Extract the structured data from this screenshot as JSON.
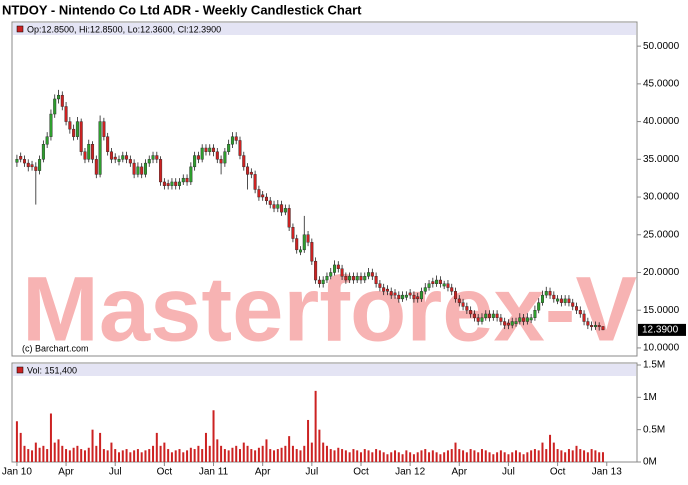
{
  "chart_data": {
    "type": "candlestick",
    "title": "NTDOY - Nintendo Co Ltd ADR - Weekly Candlestick Chart",
    "legend": "Op:12.8500, Hi:12.8500, Lo:12.3600, Cl:12.3900",
    "volume_legend": "Vol: 151,400",
    "source": "(c) Barchart.com",
    "watermark": "Masterforex-V",
    "up_color": "#2e9e2e",
    "down_color": "#cc2222",
    "volume_color": "#cc2222",
    "grid": false,
    "xlim": [
      -1.3,
      164
    ],
    "xticks": [
      {
        "value": 0,
        "label": "Jan 10"
      },
      {
        "value": 13,
        "label": "Apr"
      },
      {
        "value": 26,
        "label": "Jul"
      },
      {
        "value": 39,
        "label": "Oct"
      },
      {
        "value": 52,
        "label": "Jan 11"
      },
      {
        "value": 65,
        "label": "Apr"
      },
      {
        "value": 78,
        "label": "Jul"
      },
      {
        "value": 91,
        "label": "Oct"
      },
      {
        "value": 104,
        "label": "Jan 12"
      },
      {
        "value": 117,
        "label": "Apr"
      },
      {
        "value": 130,
        "label": "Jul"
      },
      {
        "value": 143,
        "label": "Oct"
      },
      {
        "value": 156,
        "label": "Jan 13"
      }
    ],
    "ylim": [
      8.93,
      53.2
    ],
    "yticks": [
      {
        "value": 10,
        "label": "10.0000"
      },
      {
        "value": 15,
        "label": "15.0000"
      },
      {
        "value": 20,
        "label": "20.0000"
      },
      {
        "value": 25,
        "label": "25.0000"
      },
      {
        "value": 30,
        "label": "30.0000"
      },
      {
        "value": 35,
        "label": "35.0000"
      },
      {
        "value": 40,
        "label": "40.0000"
      },
      {
        "value": 45,
        "label": "45.0000"
      },
      {
        "value": 50,
        "label": "50.0000"
      }
    ],
    "last_price": {
      "value": 12.39,
      "label": "12.3900"
    },
    "volume_ylim": [
      0,
      1500000
    ],
    "volume_ticks": [
      {
        "value": 0,
        "label": "0M"
      },
      {
        "value": 500000,
        "label": "0.5M"
      },
      {
        "value": 1000000,
        "label": "1M"
      },
      {
        "value": 1500000,
        "label": "1.5M"
      }
    ],
    "ohlc": [
      [
        34.6,
        35.6,
        34,
        35
      ],
      [
        35.4,
        35.9,
        34.6,
        35
      ],
      [
        35,
        35.5,
        34,
        34.5
      ],
      [
        34.5,
        35,
        33.4,
        34
      ],
      [
        34.3,
        34.8,
        33.5,
        34
      ],
      [
        34,
        34.6,
        29,
        33.5
      ],
      [
        33.5,
        35.5,
        33,
        35
      ],
      [
        35,
        37.5,
        34.6,
        37
      ],
      [
        37,
        38.6,
        36.5,
        38
      ],
      [
        38,
        41.6,
        37.5,
        41
      ],
      [
        41,
        43.6,
        40.5,
        43
      ],
      [
        43,
        44.2,
        42.4,
        43.5
      ],
      [
        43.5,
        44,
        41.5,
        42
      ],
      [
        42,
        42.6,
        39.5,
        40
      ],
      [
        40,
        40.6,
        38.4,
        39
      ],
      [
        39,
        39.6,
        37.5,
        38
      ],
      [
        38,
        40.6,
        37.6,
        40
      ],
      [
        40,
        40.4,
        35.5,
        36
      ],
      [
        36,
        36.5,
        34.5,
        35
      ],
      [
        35,
        37.6,
        34.6,
        37
      ],
      [
        37,
        37.4,
        34.5,
        35
      ],
      [
        35,
        35.5,
        32.5,
        33
      ],
      [
        33,
        40.8,
        32.6,
        40
      ],
      [
        40,
        40.5,
        37.5,
        38
      ],
      [
        38,
        38.5,
        35.5,
        36
      ],
      [
        36,
        36.5,
        34.5,
        35
      ],
      [
        35.3,
        35.8,
        34.5,
        35
      ],
      [
        34.7,
        35.5,
        34.2,
        35
      ],
      [
        35,
        36,
        34.6,
        35.5
      ],
      [
        35.5,
        36,
        34.5,
        35
      ],
      [
        35,
        35.5,
        34,
        34.5
      ],
      [
        34.5,
        35,
        32.5,
        33
      ],
      [
        33,
        34.6,
        32.6,
        34
      ],
      [
        34,
        34.5,
        32.5,
        33
      ],
      [
        33,
        35,
        32.6,
        34.5
      ],
      [
        34.5,
        35.5,
        34,
        35
      ],
      [
        35,
        36,
        34.5,
        35.5
      ],
      [
        35.5,
        36,
        34.5,
        35
      ],
      [
        35,
        35.4,
        31.5,
        32
      ],
      [
        32,
        32.5,
        31,
        31.5
      ],
      [
        31.8,
        32.3,
        31,
        31.5
      ],
      [
        31.5,
        32.5,
        31,
        32
      ],
      [
        32,
        32.5,
        31,
        31.5
      ],
      [
        31.5,
        32.5,
        31,
        32
      ],
      [
        32,
        33,
        31.6,
        32.5
      ],
      [
        32.5,
        33,
        31.5,
        32
      ],
      [
        32,
        34.6,
        31.6,
        34
      ],
      [
        34,
        36,
        33.5,
        35.5
      ],
      [
        35.5,
        36,
        34.5,
        35
      ],
      [
        35,
        37,
        34.6,
        36.5
      ],
      [
        36.5,
        37,
        35.5,
        36
      ],
      [
        36,
        37,
        35.5,
        36.5
      ],
      [
        36.5,
        37,
        35.4,
        36
      ],
      [
        36,
        36.5,
        34.5,
        35
      ],
      [
        35,
        35.5,
        33,
        34.5
      ],
      [
        34.5,
        36.5,
        34,
        36
      ],
      [
        36,
        37.6,
        35.6,
        37
      ],
      [
        37,
        38.6,
        36.5,
        38
      ],
      [
        38,
        38.6,
        37,
        37.5
      ],
      [
        37.5,
        38,
        35,
        35.5
      ],
      [
        35.5,
        36,
        33.5,
        34
      ],
      [
        34,
        34.5,
        31,
        33
      ],
      [
        33.3,
        33.8,
        32.5,
        33
      ],
      [
        33,
        33.5,
        30.5,
        31
      ],
      [
        31,
        31.5,
        29.5,
        30
      ],
      [
        30.3,
        30.8,
        29.5,
        30
      ],
      [
        30,
        30.5,
        29,
        29.5
      ],
      [
        29.5,
        30,
        28.5,
        29
      ],
      [
        29,
        29.5,
        28,
        28.5
      ],
      [
        28.5,
        29.6,
        28,
        29
      ],
      [
        29,
        29.5,
        27.5,
        28
      ],
      [
        28,
        29,
        27.6,
        28.5
      ],
      [
        28.5,
        29,
        25.5,
        26
      ],
      [
        26,
        26.5,
        24,
        24.5
      ],
      [
        24.5,
        25,
        22.5,
        23
      ],
      [
        22.7,
        23.5,
        22.3,
        23
      ],
      [
        23,
        27.5,
        22.6,
        25
      ],
      [
        25,
        25.5,
        23.5,
        24
      ],
      [
        24,
        24.5,
        21,
        21.5
      ],
      [
        21.5,
        22,
        18.5,
        19
      ],
      [
        19,
        19.5,
        18,
        18.5
      ],
      [
        18.5,
        19.5,
        18,
        19
      ],
      [
        19,
        20,
        18.6,
        19.5
      ],
      [
        19.5,
        20.6,
        19.1,
        20
      ],
      [
        20,
        21.6,
        19.6,
        21
      ],
      [
        21,
        21.5,
        20,
        20.5
      ],
      [
        20.5,
        21,
        19,
        19.5
      ],
      [
        19.5,
        20,
        18.5,
        19
      ],
      [
        19,
        20,
        18.6,
        19.5
      ],
      [
        19.5,
        20,
        18.5,
        19
      ],
      [
        19,
        20,
        18.6,
        19.5
      ],
      [
        19.5,
        20,
        18.5,
        19
      ],
      [
        19,
        20,
        18.6,
        19.5
      ],
      [
        19.5,
        20.6,
        19.1,
        20
      ],
      [
        20,
        20.5,
        19,
        19.5
      ],
      [
        19.5,
        20,
        18,
        18.5
      ],
      [
        18.5,
        19,
        17.5,
        18
      ],
      [
        18,
        18.5,
        17,
        17.5
      ],
      [
        17.8,
        18.3,
        17,
        17.5
      ],
      [
        17.5,
        18,
        16.5,
        17
      ],
      [
        17.3,
        17.8,
        16.5,
        17
      ],
      [
        17,
        17.5,
        16,
        16.5
      ],
      [
        16.5,
        17.5,
        16.1,
        17
      ],
      [
        16.7,
        17.5,
        16.3,
        17
      ],
      [
        17.3,
        17.8,
        16.5,
        17
      ],
      [
        17,
        17.5,
        16,
        16.5
      ],
      [
        16.8,
        17.3,
        16,
        16.5
      ],
      [
        16.5,
        18,
        16.1,
        17.5
      ],
      [
        17.5,
        18.6,
        17.1,
        18
      ],
      [
        18,
        19,
        17.6,
        18.5
      ],
      [
        18.8,
        19.3,
        18,
        18.5
      ],
      [
        18.5,
        19.6,
        18.1,
        19
      ],
      [
        19,
        19.5,
        18,
        18.5
      ],
      [
        18.2,
        18.9,
        17.8,
        18.5
      ],
      [
        18.5,
        19,
        17.5,
        18
      ],
      [
        18,
        18.5,
        17,
        17.5
      ],
      [
        17.5,
        18,
        16,
        16.5
      ],
      [
        16.5,
        17,
        15.5,
        16
      ],
      [
        16,
        16.5,
        15,
        15.5
      ],
      [
        15.5,
        16,
        14.5,
        15
      ],
      [
        15,
        15.5,
        14,
        14.5
      ],
      [
        14.5,
        15,
        13.5,
        14
      ],
      [
        14,
        14.5,
        13,
        13.5
      ],
      [
        13.5,
        14.6,
        13.1,
        14
      ],
      [
        14,
        15,
        13.6,
        14.5
      ],
      [
        14.5,
        15,
        13.5,
        14
      ],
      [
        14,
        15,
        13.6,
        14.5
      ],
      [
        14.5,
        15,
        13.5,
        14
      ],
      [
        14,
        14.5,
        13,
        13.5
      ],
      [
        13.5,
        14,
        12.5,
        13
      ],
      [
        13.3,
        13.8,
        12.5,
        13
      ],
      [
        13,
        14,
        12.6,
        13.5
      ],
      [
        13.2,
        14,
        12.8,
        13.5
      ],
      [
        13.5,
        14.6,
        13.1,
        14
      ],
      [
        14,
        14.5,
        13,
        13.5
      ],
      [
        13.5,
        14.6,
        13.1,
        14
      ],
      [
        13.7,
        14.5,
        13.3,
        14
      ],
      [
        14,
        15.6,
        13.6,
        15
      ],
      [
        15,
        16.6,
        14.6,
        16
      ],
      [
        16,
        17.6,
        15.6,
        17
      ],
      [
        17,
        18.1,
        16.6,
        17.5
      ],
      [
        17.5,
        18,
        16.5,
        17
      ],
      [
        17,
        17.5,
        16,
        16.5
      ],
      [
        16.2,
        17,
        15.8,
        16.5
      ],
      [
        16.5,
        17,
        15.5,
        16
      ],
      [
        16,
        17,
        15.6,
        16.5
      ],
      [
        16.5,
        17,
        15.5,
        16
      ],
      [
        16,
        16.5,
        15,
        15.5
      ],
      [
        15.5,
        16,
        14.5,
        15
      ],
      [
        15,
        15.5,
        14,
        14.5
      ],
      [
        14.5,
        15,
        13,
        13.5
      ],
      [
        13.5,
        14,
        12.5,
        13
      ],
      [
        13,
        13.5,
        12.3,
        12.8
      ],
      [
        12.8,
        13.5,
        12.4,
        13
      ],
      [
        13,
        13.4,
        12.3,
        12.8
      ],
      [
        12.85,
        12.85,
        12.36,
        12.39
      ]
    ],
    "volume": [
      630000,
      450000,
      250000,
      200000,
      180000,
      300000,
      220000,
      250000,
      200000,
      750000,
      300000,
      350000,
      250000,
      200000,
      180000,
      220000,
      250000,
      200000,
      180000,
      220000,
      500000,
      250000,
      450000,
      200000,
      180000,
      300000,
      200000,
      150000,
      180000,
      200000,
      150000,
      180000,
      200000,
      150000,
      180000,
      200000,
      250000,
      450000,
      250000,
      300000,
      200000,
      150000,
      180000,
      200000,
      150000,
      180000,
      220000,
      200000,
      250000,
      200000,
      450000,
      250000,
      800000,
      350000,
      250000,
      200000,
      180000,
      220000,
      250000,
      200000,
      300000,
      250000,
      200000,
      180000,
      220000,
      250000,
      350000,
      200000,
      180000,
      200000,
      220000,
      250000,
      400000,
      250000,
      200000,
      180000,
      250000,
      650000,
      300000,
      1100000,
      500000,
      300000,
      250000,
      200000,
      180000,
      220000,
      200000,
      180000,
      150000,
      200000,
      180000,
      150000,
      200000,
      180000,
      150000,
      200000,
      180000,
      150000,
      120000,
      150000,
      180000,
      150000,
      120000,
      180000,
      150000,
      120000,
      150000,
      180000,
      200000,
      150000,
      180000,
      150000,
      120000,
      150000,
      180000,
      200000,
      300000,
      200000,
      180000,
      150000,
      200000,
      180000,
      150000,
      200000,
      180000,
      150000,
      120000,
      150000,
      180000,
      150000,
      120000,
      150000,
      180000,
      150000,
      120000,
      150000,
      180000,
      200000,
      180000,
      300000,
      200000,
      420000,
      300000,
      200000,
      180000,
      150000,
      200000,
      180000,
      250000,
      200000,
      180000,
      150000,
      200000,
      180000,
      150000,
      151400
    ]
  }
}
